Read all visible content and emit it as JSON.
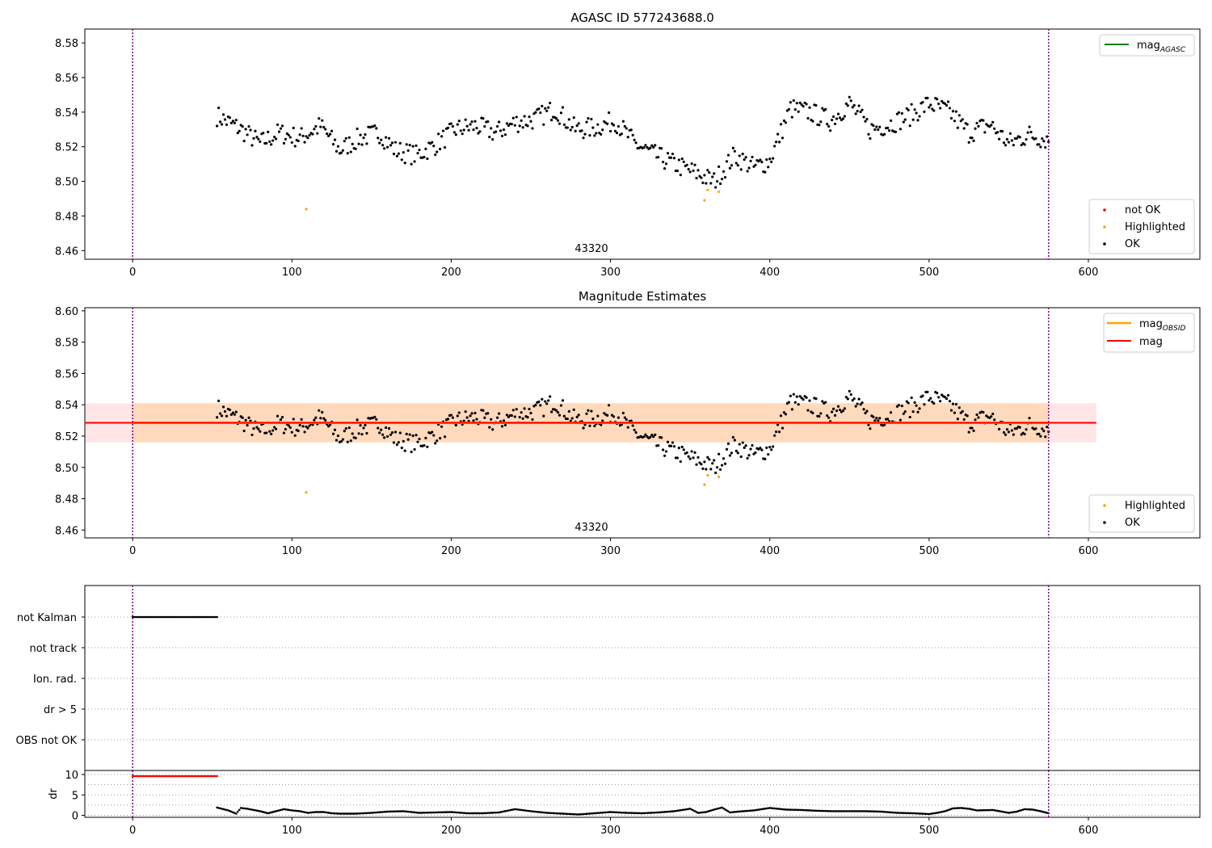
{
  "chart_data": [
    {
      "type": "scatter",
      "title": "AGASC ID 577243688.0",
      "obsid_label": "43320",
      "xlim": [
        -30,
        670
      ],
      "ylim": [
        8.455,
        8.588
      ],
      "xticks": [
        0,
        100,
        200,
        300,
        400,
        500,
        600
      ],
      "yticks": [
        8.46,
        8.48,
        8.5,
        8.52,
        8.54,
        8.56,
        8.58
      ],
      "vlines": [
        0,
        575
      ],
      "legend_lines": [
        {
          "label": "mag",
          "sub": "AGASC",
          "color": "#008000"
        }
      ],
      "legend_points": [
        {
          "label": "not OK",
          "color": "#ff0000"
        },
        {
          "label": "Highlighted",
          "color": "#ffa500"
        },
        {
          "label": "OK",
          "color": "#000000"
        }
      ],
      "series_ok": {
        "name": "OK",
        "x": [
          53,
          68,
          80,
          92,
          105,
          118,
          130,
          142,
          155,
          165,
          178,
          190,
          203,
          215,
          228,
          240,
          253,
          265,
          278,
          290,
          303,
          315,
          328,
          340,
          353,
          365,
          378,
          390,
          400,
          413,
          425,
          438,
          450,
          463,
          475,
          488,
          500,
          513,
          525,
          538,
          550,
          563,
          575
        ],
        "y": [
          8.538,
          8.53,
          8.522,
          8.528,
          8.525,
          8.532,
          8.518,
          8.525,
          8.528,
          8.518,
          8.515,
          8.521,
          8.53,
          8.532,
          8.528,
          8.534,
          8.536,
          8.542,
          8.53,
          8.531,
          8.535,
          8.522,
          8.515,
          8.51,
          8.505,
          8.5,
          8.515,
          8.508,
          8.512,
          8.542,
          8.54,
          8.535,
          8.545,
          8.53,
          8.533,
          8.538,
          8.545,
          8.54,
          8.528,
          8.533,
          8.522,
          8.527,
          8.524
        ]
      },
      "series_highlighted": {
        "name": "Highlighted",
        "x": [
          109,
          359,
          361,
          368
        ],
        "y": [
          8.484,
          8.489,
          8.495,
          8.494
        ]
      },
      "series_not_ok": {
        "name": "not OK",
        "x": [],
        "y": []
      }
    },
    {
      "type": "scatter",
      "title": "Magnitude Estimates",
      "obsid_label": "43320",
      "xlim": [
        -30,
        670
      ],
      "ylim": [
        8.455,
        8.602
      ],
      "xticks": [
        0,
        100,
        200,
        300,
        400,
        500,
        600
      ],
      "yticks": [
        8.46,
        8.48,
        8.5,
        8.52,
        8.54,
        8.56,
        8.58,
        8.6
      ],
      "vlines": [
        0,
        575
      ],
      "mag_obsid": {
        "value": 8.5285,
        "x_range": [
          0,
          575
        ],
        "band": [
          8.516,
          8.541
        ]
      },
      "mag": {
        "value": 8.5285,
        "x_range": [
          -30,
          605
        ],
        "band": [
          8.516,
          8.541
        ]
      },
      "legend_lines": [
        {
          "label": "mag",
          "sub": "OBSID",
          "color": "#ffa500"
        },
        {
          "label": "mag",
          "sub": "",
          "color": "#ff0000"
        }
      ],
      "legend_points": [
        {
          "label": "Highlighted",
          "color": "#ffa500"
        },
        {
          "label": "OK",
          "color": "#000000"
        }
      ],
      "series_highlighted": {
        "name": "Highlighted",
        "x": [
          109,
          359,
          361,
          368
        ],
        "y": [
          8.484,
          8.489,
          8.495,
          8.494
        ]
      }
    },
    {
      "type": "scatter",
      "title": "",
      "xlim": [
        -30,
        670
      ],
      "flag_labels": [
        "not Kalman",
        "not track",
        "Ion. rad.",
        "dr > 5",
        "OBS not OK"
      ],
      "flag_segments": [
        {
          "flag": "not Kalman",
          "x_range": [
            0,
            53
          ]
        }
      ],
      "vlines": [
        0,
        575
      ]
    },
    {
      "type": "scatter",
      "title": "",
      "ylabel": "dr",
      "xlim": [
        -30,
        670
      ],
      "ylim": [
        -0.5,
        11
      ],
      "xticks": [
        0,
        100,
        200,
        300,
        400,
        500,
        600
      ],
      "yticks": [
        0,
        5,
        10
      ],
      "vlines": [
        0,
        575
      ],
      "capped": {
        "x_range": [
          0,
          53
        ],
        "value": 9.6
      },
      "series": {
        "name": "dr",
        "x": [
          53,
          60,
          65,
          68,
          72,
          80,
          85,
          90,
          95,
          100,
          105,
          110,
          115,
          120,
          125,
          130,
          140,
          150,
          160,
          170,
          180,
          190,
          200,
          210,
          220,
          230,
          240,
          250,
          260,
          270,
          280,
          290,
          300,
          310,
          320,
          330,
          340,
          350,
          355,
          360,
          365,
          370,
          375,
          380,
          390,
          400,
          410,
          420,
          430,
          440,
          450,
          460,
          470,
          480,
          490,
          500,
          505,
          510,
          515,
          520,
          525,
          530,
          540,
          550,
          555,
          560,
          565,
          570,
          575
        ],
        "y": [
          1.9,
          1.2,
          0.4,
          1.8,
          1.6,
          1.0,
          0.5,
          1.0,
          1.5,
          1.2,
          1.0,
          0.6,
          0.8,
          0.8,
          0.5,
          0.4,
          0.4,
          0.6,
          0.9,
          1.0,
          0.6,
          0.7,
          0.8,
          0.5,
          0.5,
          0.7,
          1.5,
          1.0,
          0.6,
          0.4,
          0.2,
          0.5,
          0.8,
          0.6,
          0.5,
          0.7,
          1.0,
          1.6,
          0.6,
          0.8,
          1.4,
          1.9,
          0.7,
          0.9,
          1.2,
          1.8,
          1.4,
          1.3,
          1.1,
          1.0,
          1.0,
          1.0,
          0.9,
          0.6,
          0.5,
          0.3,
          0.6,
          1.0,
          1.7,
          1.8,
          1.6,
          1.2,
          1.3,
          0.6,
          0.9,
          1.5,
          1.4,
          1.0,
          0.5
        ]
      }
    }
  ]
}
